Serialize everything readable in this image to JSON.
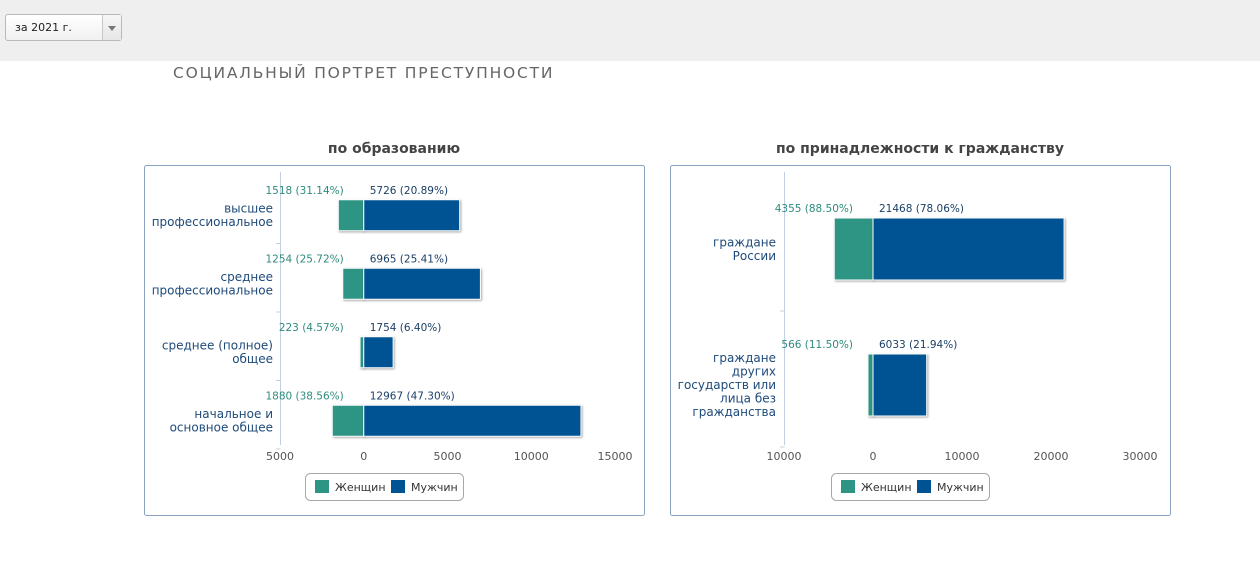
{
  "toolbar": {
    "year_select_value": "за 2021 г."
  },
  "page": {
    "title": "СОЦИАЛЬНЫЙ ПОРТРЕТ ПРЕСТУПНОСТИ"
  },
  "colors": {
    "women": "#2e9484",
    "men": "#005392",
    "women_text": "#2e8b7c",
    "men_text": "#1b3f66",
    "panel_border": "#8aa3c0"
  },
  "chart_data": [
    {
      "type": "bar",
      "orientation": "horizontal",
      "stacked": true,
      "title": "по образованию",
      "categories": [
        "высшее профессиональное",
        "среднее профессиональное",
        "среднее (полное) общее",
        "начальное и основное общее"
      ],
      "category_lines": [
        [
          "высшее",
          "профессиональное"
        ],
        [
          "среднее",
          "профессиональное"
        ],
        [
          "среднее (полное)",
          "общее"
        ],
        [
          "начальное и",
          "основное общее"
        ]
      ],
      "series": [
        {
          "name": "Женщин",
          "values": [
            1518,
            1254,
            223,
            1880
          ],
          "labels": [
            "1518 (31.14%)",
            "1254 (25.72%)",
            "223 (4.57%)",
            "1880 (38.56%)"
          ]
        },
        {
          "name": "Мужчин",
          "values": [
            5726,
            6965,
            1754,
            12967
          ],
          "labels": [
            "5726 (20.89%)",
            "6965 (25.41%)",
            "1754 (6.40%)",
            "12967 (47.30%)"
          ]
        }
      ],
      "xlim": [
        -5000,
        15000
      ],
      "xticks": [
        -5000,
        0,
        5000,
        10000,
        15000
      ],
      "xtick_labels": [
        "5000",
        "0",
        "5000",
        "10000",
        "15000"
      ],
      "legend": [
        "Женщин",
        "Мужчин"
      ],
      "legend_position": "bottom"
    },
    {
      "type": "bar",
      "orientation": "horizontal",
      "stacked": true,
      "title": "по принадлежности к гражданству",
      "categories": [
        "граждане России",
        "граждане других государств или лица без гражданства"
      ],
      "category_lines": [
        [
          "граждане",
          "России"
        ],
        [
          "граждане",
          "других",
          "государств или",
          "лица без",
          "гражданства"
        ]
      ],
      "series": [
        {
          "name": "Женщин",
          "values": [
            4355,
            566
          ],
          "labels": [
            "4355 (88.50%)",
            "566 (11.50%)"
          ]
        },
        {
          "name": "Мужчин",
          "values": [
            21468,
            6033
          ],
          "labels": [
            "21468 (78.06%)",
            "6033 (21.94%)"
          ]
        }
      ],
      "xlim": [
        -10000,
        30000
      ],
      "xticks": [
        -10000,
        0,
        10000,
        20000,
        30000
      ],
      "xtick_labels": [
        "10000",
        "0",
        "10000",
        "20000",
        "30000"
      ],
      "legend": [
        "Женщин",
        "Мужчин"
      ],
      "legend_position": "bottom"
    }
  ]
}
